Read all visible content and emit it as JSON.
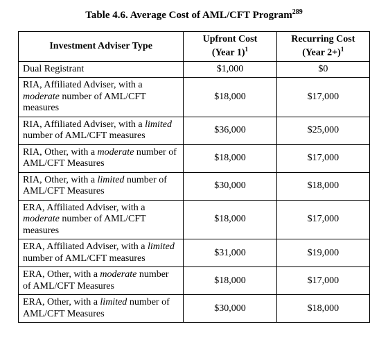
{
  "type": "table",
  "title": {
    "prefix": "Table 4.6. Average Cost of AML/CFT Program",
    "sup": "289",
    "fontsize_pt": 15,
    "weight": "bold",
    "align": "center"
  },
  "background_color": "#ffffff",
  "border_color": "#000000",
  "text_color": "#000000",
  "font_family": "Times New Roman",
  "cell_fontsize_pt": 14,
  "columns": [
    {
      "key": "type",
      "align": "left",
      "width_pct": 47
    },
    {
      "key": "upfront",
      "align": "center",
      "width_pct": 26.5
    },
    {
      "key": "recurring",
      "align": "center",
      "width_pct": 26.5
    }
  ],
  "header": {
    "c0": "Investment Adviser Type",
    "c1_line1": "Upfront Cost",
    "c1_line2_prefix": "(Year 1)",
    "c1_line2_sup": "1",
    "c2_line1": "Recurring Cost",
    "c2_line2_prefix": "(Year 2+)",
    "c2_line2_sup": "1"
  },
  "rows": [
    {
      "desc_pre": "Dual Registrant",
      "italic": "",
      "desc_post": "",
      "upfront": "$1,000",
      "recurring": "$0"
    },
    {
      "desc_pre": "RIA, Affiliated Adviser, with a ",
      "italic": "moderate",
      "desc_post": " number of AML/CFT measures",
      "upfront": "$18,000",
      "recurring": "$17,000"
    },
    {
      "desc_pre": "RIA, Affiliated Adviser, with a ",
      "italic": "limited",
      "desc_post": " number of AML/CFT measures",
      "upfront": "$36,000",
      "recurring": "$25,000"
    },
    {
      "desc_pre": "RIA, Other, with a ",
      "italic": "moderate",
      "desc_post": " number of AML/CFT Measures",
      "upfront": "$18,000",
      "recurring": "$17,000"
    },
    {
      "desc_pre": "RIA, Other, with a ",
      "italic": "limited",
      "desc_post": " number of AML/CFT Measures",
      "upfront": "$30,000",
      "recurring": "$18,000"
    },
    {
      "desc_pre": "ERA, Affiliated Adviser, with a ",
      "italic": "moderate",
      "desc_post": " number of AML/CFT measures",
      "upfront": "$18,000",
      "recurring": "$17,000"
    },
    {
      "desc_pre": "ERA, Affiliated Adviser, with a ",
      "italic": "limited",
      "desc_post": " number of AML/CFT measures",
      "upfront": "$31,000",
      "recurring": "$19,000"
    },
    {
      "desc_pre": "ERA, Other, with a ",
      "italic": "moderate",
      "desc_post": " number of AML/CFT Measures",
      "upfront": "$18,000",
      "recurring": "$17,000"
    },
    {
      "desc_pre": "ERA, Other, with a ",
      "italic": "limited",
      "desc_post": " number of AML/CFT Measures",
      "upfront": "$30,000",
      "recurring": "$18,000"
    }
  ]
}
